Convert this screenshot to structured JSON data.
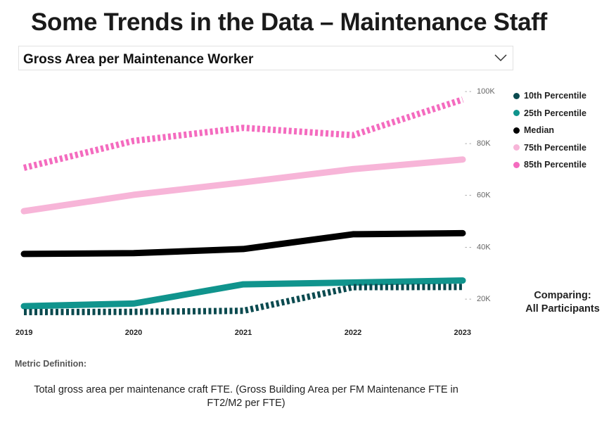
{
  "page_title": "Some Trends in the Data – Maintenance Staff",
  "selector": {
    "label": "Gross Area per Maintenance Worker",
    "icon": "chevron-down-icon"
  },
  "comparing": {
    "line1": "Comparing:",
    "line2": "All Participants"
  },
  "metric": {
    "title": "Metric Definition:",
    "definition": "Total gross area per maintenance craft FTE. (Gross Building Area per FM Maintenance FTE in FT2/M2 per FTE)"
  },
  "chart_data": {
    "type": "line",
    "title": "",
    "xlabel": "",
    "ylabel": "",
    "categories": [
      "2019",
      "2020",
      "2021",
      "2022",
      "2023"
    ],
    "ylim": [
      10000,
      100000
    ],
    "yticks": [
      20000,
      40000,
      60000,
      80000,
      100000
    ],
    "ytick_labels": [
      "20K",
      "40K",
      "60K",
      "80K",
      "100K"
    ],
    "grid": false,
    "legend_position": "right",
    "series": [
      {
        "name": "10th Percentile",
        "color": "#0b4a4f",
        "style": "dotted",
        "values": [
          14700,
          14800,
          15200,
          24300,
          24400
        ]
      },
      {
        "name": "25th Percentile",
        "color": "#10948d",
        "style": "solid",
        "values": [
          17000,
          18000,
          25400,
          26100,
          26900
        ]
      },
      {
        "name": "Median",
        "color": "#000000",
        "style": "solid",
        "values": [
          37100,
          37400,
          39000,
          44700,
          45100
        ]
      },
      {
        "name": "75th Percentile",
        "color": "#f7b5d8",
        "style": "solid",
        "values": [
          53600,
          59900,
          64700,
          69800,
          73500
        ]
      },
      {
        "name": "85th Percentile",
        "color": "#f46bbf",
        "style": "dotted",
        "values": [
          70300,
          80700,
          85700,
          82900,
          96600
        ]
      }
    ]
  }
}
